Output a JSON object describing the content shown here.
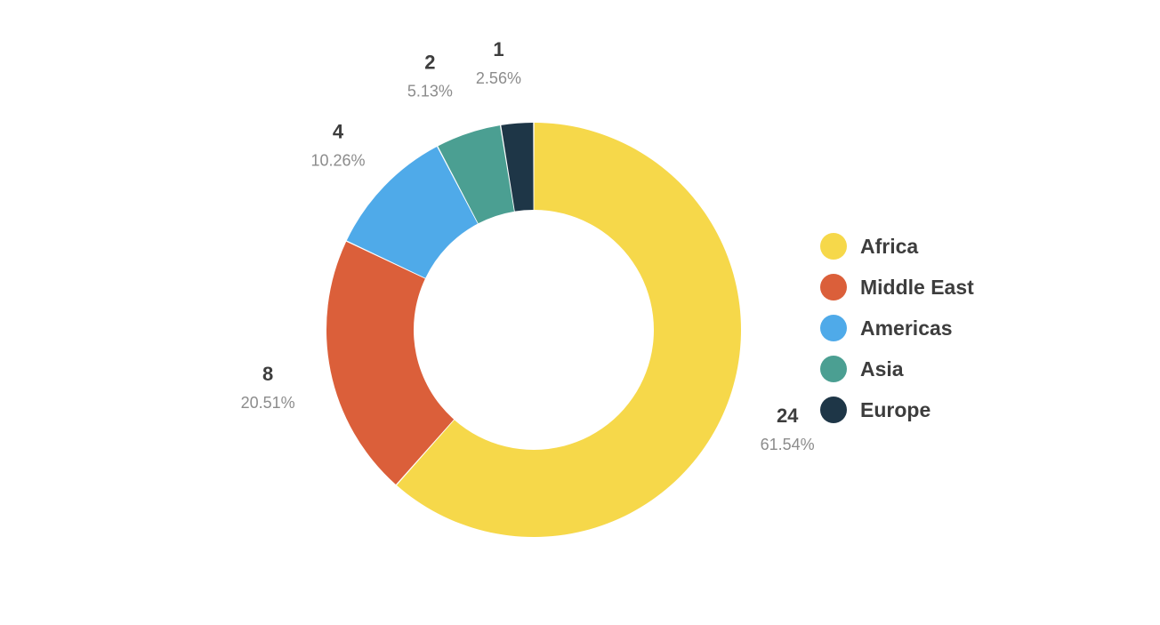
{
  "chart_data": {
    "type": "pie",
    "variant": "donut",
    "title": "",
    "categories": [
      "Africa",
      "Middle East",
      "Americas",
      "Asia",
      "Europe"
    ],
    "values": [
      24,
      8,
      4,
      2,
      1
    ],
    "percent_labels": [
      "61.54%",
      "20.51%",
      "10.26%",
      "5.13%",
      "2.56%"
    ],
    "colors": [
      "#f6d84a",
      "#db5f3a",
      "#4faae9",
      "#4b9f92",
      "#1e3647"
    ],
    "legend_position": "right",
    "data_labels": "outside",
    "start_angle": "top, clockwise"
  }
}
